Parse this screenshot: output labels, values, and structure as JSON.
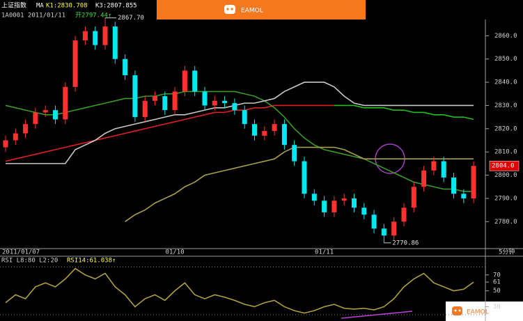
{
  "header": {
    "name": "上证指数",
    "ma": "MA",
    "k1": "K1:2830.708",
    "k3": "K3:2807.855",
    "code_date": "1A0001 2011/01/11",
    "open": "开2797.44↑"
  },
  "logo": "EAMOL",
  "logo_bottom": "EAMOL",
  "chart_data": [
    {
      "type": "candlestick",
      "categories": [
        "2011/01/07",
        null,
        null,
        null,
        null,
        null,
        null,
        null,
        null,
        null,
        null,
        null,
        null,
        null,
        null,
        null,
        null,
        "01/10",
        null,
        null,
        null,
        null,
        null,
        null,
        null,
        null,
        null,
        null,
        null,
        null,
        null,
        null,
        "01/11",
        null,
        null,
        null,
        null,
        null,
        null,
        null,
        null,
        null,
        null,
        null,
        null,
        null,
        null,
        null
      ],
      "open": [
        2812,
        2815,
        2818,
        2822,
        2827,
        2828,
        2824,
        2838,
        2858,
        2862,
        2856,
        2864,
        2850,
        2843,
        2825,
        2832,
        2834,
        2828,
        2836,
        2845,
        2836,
        2830,
        2832,
        2831,
        2828,
        2822,
        2817,
        2819,
        2822,
        2813,
        2806,
        2792,
        2789,
        2784,
        2789,
        2790,
        2786,
        2783,
        2777,
        2774,
        2780,
        2786,
        2795,
        2802,
        2806,
        2799,
        2792,
        2790
      ],
      "high": [
        2817,
        2820,
        2824,
        2829,
        2830,
        2830,
        2840,
        2860,
        2864,
        2864,
        2867.7,
        2866,
        2852,
        2845,
        2834,
        2836,
        2836,
        2838,
        2847,
        2847,
        2838,
        2834,
        2834,
        2833,
        2830,
        2824,
        2821,
        2824,
        2824,
        2815,
        2808,
        2794,
        2791,
        2791,
        2792,
        2792,
        2788,
        2785,
        2779,
        2782,
        2788,
        2797,
        2804,
        2808,
        2808,
        2801,
        2794,
        2806
      ],
      "low": [
        2810,
        2813,
        2816,
        2820,
        2825,
        2822,
        2822,
        2836,
        2856,
        2854,
        2854,
        2848,
        2841,
        2823,
        2823,
        2830,
        2826,
        2826,
        2834,
        2834,
        2828,
        2828,
        2829,
        2826,
        2820,
        2815,
        2815,
        2817,
        2811,
        2804,
        2790,
        2787,
        2782,
        2782,
        2787,
        2784,
        2781,
        2775,
        2770.86,
        2772,
        2778,
        2784,
        2793,
        2800,
        2797,
        2790,
        2788,
        2788
      ],
      "close": [
        2815,
        2818,
        2822,
        2827,
        2828,
        2824,
        2838,
        2858,
        2862,
        2856,
        2864,
        2850,
        2843,
        2825,
        2832,
        2834,
        2828,
        2836,
        2845,
        2836,
        2830,
        2832,
        2831,
        2828,
        2822,
        2817,
        2819,
        2822,
        2813,
        2806,
        2792,
        2789,
        2784,
        2789,
        2790,
        2786,
        2783,
        2777,
        2774,
        2780,
        2786,
        2795,
        2802,
        2806,
        2799,
        2792,
        2790,
        2804
      ],
      "up_color": "#ff3030",
      "down_color": "#00e8f0",
      "series": [
        {
          "color": "#e02020",
          "values": [
            2806,
            2807,
            2808,
            2809,
            2810,
            2811,
            2812,
            2813,
            2814,
            2815,
            2816,
            2817,
            2818,
            2819,
            2820,
            2821,
            2822,
            2823,
            2824,
            2825,
            2826,
            2827,
            2827,
            2828,
            2828,
            2829,
            2829,
            2830,
            2830,
            2830,
            2830,
            2830,
            2830,
            2830,
            null,
            null,
            null,
            null,
            null,
            null,
            null,
            null,
            null,
            null,
            null,
            null,
            null,
            null
          ]
        },
        {
          "color": "#20c020",
          "values": [
            null,
            null,
            null,
            null,
            null,
            null,
            null,
            null,
            null,
            null,
            null,
            null,
            null,
            null,
            null,
            null,
            null,
            null,
            null,
            null,
            null,
            null,
            null,
            null,
            null,
            null,
            null,
            null,
            null,
            null,
            null,
            null,
            null,
            2830,
            2830,
            2830,
            2829,
            2829,
            2829,
            2828,
            2828,
            2827,
            2827,
            2826,
            2826,
            2825,
            2825,
            2824
          ]
        },
        {
          "color": "#3a9a2a",
          "values": [
            2830,
            2829,
            2828,
            2827,
            2826,
            2826,
            2827,
            2828,
            2829,
            2830,
            2831,
            2832,
            2833,
            2833,
            2834,
            2834,
            2835,
            2835,
            2836,
            2836,
            2836,
            2836,
            2836,
            2836,
            2835,
            2834,
            2832,
            2829,
            2825,
            2820,
            2816,
            2813,
            2811,
            2810,
            2809,
            2808,
            2807,
            2805,
            2803,
            2801,
            2799,
            2797,
            2796,
            2795,
            2794,
            2794,
            2793,
            2793
          ]
        },
        {
          "color": "#c8c8c8",
          "values": [
            2805,
            2805,
            2805,
            2805,
            2805,
            2805,
            2805,
            2811,
            2813,
            2815,
            2818,
            2820,
            2821,
            2822,
            2823,
            2824,
            2825,
            2826,
            2826,
            2827,
            2828,
            2829,
            2829,
            2830,
            2831,
            2831,
            2832,
            2833,
            2836,
            2838,
            2840,
            2840,
            2840,
            2838,
            2834,
            2831,
            2830,
            2830,
            2830,
            2830,
            2830,
            2830,
            2830,
            2830,
            2830,
            2830,
            2830,
            2830
          ]
        },
        {
          "color": "#a8a050",
          "values": [
            null,
            null,
            null,
            null,
            null,
            null,
            null,
            null,
            null,
            null,
            null,
            null,
            2780,
            2783,
            2785,
            2788,
            2790,
            2792,
            2795,
            2797,
            2800,
            2801,
            2802,
            2803,
            2804,
            2805,
            2806,
            2807,
            2810,
            2812,
            2812,
            2812,
            2812,
            2812,
            2811,
            2809,
            2807,
            2807,
            2807,
            2807,
            2807,
            2807,
            2807,
            2807,
            2807,
            2807,
            2807,
            2807
          ]
        }
      ],
      "ylim": [
        2769,
        2870
      ],
      "yticks": [
        {
          "value": 2780,
          "label": "2780.0"
        },
        {
          "value": 2790,
          "label": "2790.0"
        },
        {
          "value": 2800,
          "label": "2800.0"
        },
        {
          "value": 2810,
          "label": "2810.0"
        },
        {
          "value": 2820,
          "label": "2820.0"
        },
        {
          "value": 2830,
          "label": "2830.0"
        },
        {
          "value": 2840,
          "label": "2840.0"
        },
        {
          "value": 2850,
          "label": "2850.0"
        },
        {
          "value": 2860,
          "label": "2860.0"
        }
      ],
      "high_label": "2867.70",
      "low_label": "2770.86",
      "last_label": "2804.0",
      "period": "5分钟"
    },
    {
      "type": "line",
      "title": "RSI L8:80 L2:20",
      "subtitle": "RSI14:61.038↑",
      "series": [
        {
          "color": "#b0a040",
          "values": [
            35,
            45,
            40,
            55,
            60,
            55,
            65,
            78,
            70,
            65,
            72,
            55,
            45,
            30,
            40,
            45,
            38,
            50,
            60,
            45,
            40,
            45,
            42,
            38,
            33,
            30,
            35,
            38,
            30,
            25,
            22,
            25,
            30,
            33,
            28,
            27,
            28,
            26,
            30,
            40,
            55,
            65,
            72,
            60,
            55,
            50,
            52,
            61
          ]
        }
      ],
      "levels": [
        20,
        80
      ],
      "ylim": [
        12,
        83
      ],
      "yticks": [
        30,
        50,
        61,
        70
      ]
    }
  ]
}
